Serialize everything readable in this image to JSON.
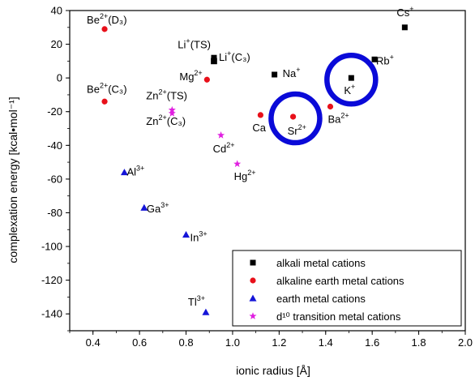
{
  "chart_data": {
    "type": "scatter",
    "xlabel": "ionic radius [Å]",
    "ylabel": "complexation energy [kcal•mol⁻¹]",
    "xlim": [
      0.3,
      2.0
    ],
    "ylim": [
      -150,
      40
    ],
    "xticks": [
      "0.4",
      "0.6",
      "0.8",
      "1.0",
      "1.2",
      "1.4",
      "1.6",
      "1.8",
      "2.0"
    ],
    "xtick_values": [
      0.4,
      0.6,
      0.8,
      1.0,
      1.2,
      1.4,
      1.6,
      1.8,
      2.0
    ],
    "yticks": [
      "40",
      "20",
      "0",
      "-20",
      "-40",
      "-60",
      "-80",
      "-100",
      "-120",
      "-140"
    ],
    "ytick_values": [
      40,
      20,
      0,
      -20,
      -40,
      -60,
      -80,
      -100,
      -120,
      -140
    ],
    "grid": false,
    "legend_position": "bottom-right",
    "series": [
      {
        "name": "alkali metal cations",
        "marker": "square",
        "color": "#000000",
        "points": [
          {
            "x": 0.92,
            "y": 10,
            "label": "Li",
            "sup": "+",
            "suffix": "(TS)"
          },
          {
            "x": 0.92,
            "y": 12,
            "label": "Li",
            "sup": "+",
            "suffix": "(C₃)"
          },
          {
            "x": 1.18,
            "y": 2,
            "label": "Na",
            "sup": "+",
            "suffix": ""
          },
          {
            "x": 1.51,
            "y": 0,
            "label": "K",
            "sup": "+",
            "suffix": ""
          },
          {
            "x": 1.61,
            "y": 11,
            "label": "Rb",
            "sup": "+",
            "suffix": ""
          },
          {
            "x": 1.74,
            "y": 30,
            "label": "Cs",
            "sup": "+",
            "suffix": ""
          }
        ]
      },
      {
        "name": "alkaline earth metal cations",
        "marker": "circle",
        "color": "#e8101a",
        "points": [
          {
            "x": 0.45,
            "y": 29,
            "label": "Be",
            "sup": "2+",
            "suffix": "(D₃)"
          },
          {
            "x": 0.45,
            "y": -14,
            "label": "Be",
            "sup": "2+",
            "suffix": "(C₃)"
          },
          {
            "x": 0.89,
            "y": -1,
            "label": "Mg",
            "sup": "2+",
            "suffix": ""
          },
          {
            "x": 1.12,
            "y": -22,
            "label": "Ca",
            "sup": "",
            "suffix": ""
          },
          {
            "x": 1.26,
            "y": -23,
            "label": "Sr",
            "sup": "2+",
            "suffix": ""
          },
          {
            "x": 1.42,
            "y": -17,
            "label": "Ba",
            "sup": "2+",
            "suffix": ""
          }
        ]
      },
      {
        "name": "earth metal cations",
        "marker": "triangle",
        "color": "#1515d8",
        "points": [
          {
            "x": 0.535,
            "y": -56,
            "label": "Al",
            "sup": "3+",
            "suffix": ""
          },
          {
            "x": 0.62,
            "y": -77,
            "label": "Ga",
            "sup": "3+",
            "suffix": ""
          },
          {
            "x": 0.8,
            "y": -93,
            "label": "In",
            "sup": "3+",
            "suffix": ""
          },
          {
            "x": 0.885,
            "y": -139,
            "label": "Tl",
            "sup": "3+",
            "suffix": ""
          }
        ]
      },
      {
        "name": "d¹⁰ transition metal cations",
        "marker": "star",
        "color": "#e020e0",
        "points": [
          {
            "x": 0.74,
            "y": -19,
            "label": "Zn",
            "sup": "2+",
            "suffix": "(TS)"
          },
          {
            "x": 0.74,
            "y": -21,
            "label": "Zn",
            "sup": "2+",
            "suffix": "(C₃)"
          },
          {
            "x": 0.95,
            "y": -34,
            "label": "Cd",
            "sup": "2+",
            "suffix": ""
          },
          {
            "x": 1.02,
            "y": -51,
            "label": "Hg",
            "sup": "2+",
            "suffix": ""
          }
        ]
      }
    ],
    "highlight_circles": [
      {
        "x": 1.51,
        "y": -1,
        "color": "#0a0ad8"
      },
      {
        "x": 1.27,
        "y": -24,
        "color": "#0a0ad8"
      }
    ]
  }
}
